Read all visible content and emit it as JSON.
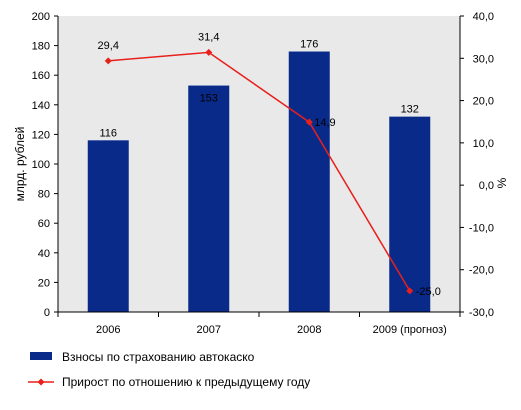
{
  "chart_data": {
    "type": "bar",
    "categories": [
      "2006",
      "2007",
      "2008",
      "2009 (прогноз)"
    ],
    "series": [
      {
        "name": "Взносы по страхованию автокаско",
        "type": "bar",
        "axis": "left",
        "values": [
          116,
          153,
          176,
          132
        ],
        "labels": [
          "116",
          "153",
          "176",
          "132"
        ],
        "color": "#0a2a8a"
      },
      {
        "name": "Прирост по отношению к предыдущему году",
        "type": "line",
        "axis": "right",
        "values": [
          29.4,
          31.4,
          14.9,
          -25.0
        ],
        "labels": [
          "29,4",
          "31,4",
          "14,9",
          "-25,0"
        ],
        "color": "#e8201c"
      }
    ],
    "y_left": {
      "label": "млрд. рублей",
      "lim": [
        0,
        200
      ],
      "ticks": [
        "0",
        "20",
        "40",
        "60",
        "80",
        "100",
        "120",
        "140",
        "160",
        "180",
        "200"
      ]
    },
    "y_right": {
      "label": "%",
      "lim": [
        -30,
        40
      ],
      "ticks": [
        "-30,0",
        "-20,0",
        "-10,0",
        "0,0",
        "10,0",
        "20,0",
        "30,0",
        "40,0"
      ]
    },
    "plot_background": "#e9e9e9",
    "grid": false,
    "legend_position": "bottom"
  }
}
